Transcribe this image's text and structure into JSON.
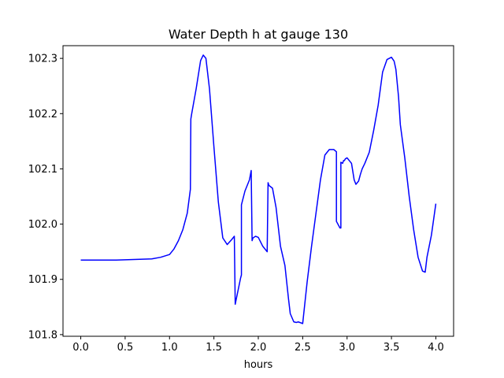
{
  "chart_data": {
    "type": "line",
    "title": "Water Depth h at gauge 130",
    "xlabel": "hours",
    "ylabel": "",
    "xlim": [
      -0.2,
      4.2
    ],
    "ylim": [
      101.797,
      102.323
    ],
    "x_ticks": [
      0.0,
      0.5,
      1.0,
      1.5,
      2.0,
      2.5,
      3.0,
      3.5,
      4.0
    ],
    "x_tick_labels": [
      "0.0",
      "0.5",
      "1.0",
      "1.5",
      "2.0",
      "2.5",
      "3.0",
      "3.5",
      "4.0"
    ],
    "y_ticks": [
      101.8,
      101.9,
      102.0,
      102.1,
      102.2,
      102.3
    ],
    "y_tick_labels": [
      "101.8",
      "101.9",
      "102.0",
      "102.1",
      "102.2",
      "102.3"
    ],
    "grid": false,
    "series": [
      {
        "color": "#0000ff",
        "x": [
          0.0,
          0.2,
          0.4,
          0.6,
          0.8,
          0.9,
          1.0,
          1.05,
          1.1,
          1.15,
          1.2,
          1.235,
          1.24,
          1.25,
          1.3,
          1.35,
          1.38,
          1.41,
          1.45,
          1.5,
          1.55,
          1.6,
          1.65,
          1.7,
          1.73,
          1.74,
          1.74,
          1.8,
          1.81,
          1.81,
          1.85,
          1.9,
          1.92,
          1.93,
          1.94,
          1.97,
          2.0,
          2.05,
          2.1,
          2.11,
          2.12,
          2.16,
          2.2,
          2.25,
          2.3,
          2.34,
          2.36,
          2.4,
          2.43,
          2.45,
          2.5,
          2.55,
          2.6,
          2.65,
          2.7,
          2.75,
          2.8,
          2.83,
          2.85,
          2.88,
          2.88,
          2.92,
          2.93,
          2.93,
          2.95,
          2.96,
          2.97,
          2.98,
          3.0,
          3.05,
          3.08,
          3.1,
          3.13,
          3.15,
          3.17,
          3.2,
          3.25,
          3.3,
          3.35,
          3.4,
          3.45,
          3.5,
          3.53,
          3.55,
          3.58,
          3.6,
          3.65,
          3.7,
          3.75,
          3.8,
          3.85,
          3.88,
          3.9,
          3.95,
          4.0
        ],
        "y": [
          101.935,
          101.935,
          101.935,
          101.936,
          101.937,
          101.94,
          101.945,
          101.955,
          101.97,
          101.99,
          102.02,
          102.063,
          102.19,
          102.2,
          102.245,
          102.296,
          102.306,
          102.3,
          102.245,
          102.14,
          102.04,
          101.975,
          101.963,
          101.972,
          101.978,
          101.855,
          101.855,
          101.902,
          101.908,
          102.035,
          102.06,
          102.08,
          102.097,
          101.97,
          101.975,
          101.978,
          101.976,
          101.96,
          101.95,
          102.075,
          102.07,
          102.065,
          102.03,
          101.96,
          101.925,
          101.865,
          101.838,
          101.823,
          101.822,
          101.823,
          101.82,
          101.895,
          101.96,
          102.02,
          102.08,
          102.125,
          102.135,
          102.135,
          102.135,
          102.131,
          102.005,
          101.993,
          101.993,
          102.112,
          102.11,
          102.115,
          102.115,
          102.118,
          102.12,
          102.11,
          102.08,
          102.072,
          102.078,
          102.09,
          102.1,
          102.11,
          102.13,
          102.17,
          102.215,
          102.275,
          102.298,
          102.302,
          102.295,
          102.28,
          102.23,
          102.18,
          102.12,
          102.05,
          101.99,
          101.94,
          101.915,
          101.913,
          101.94,
          101.98,
          102.037
        ]
      }
    ]
  }
}
